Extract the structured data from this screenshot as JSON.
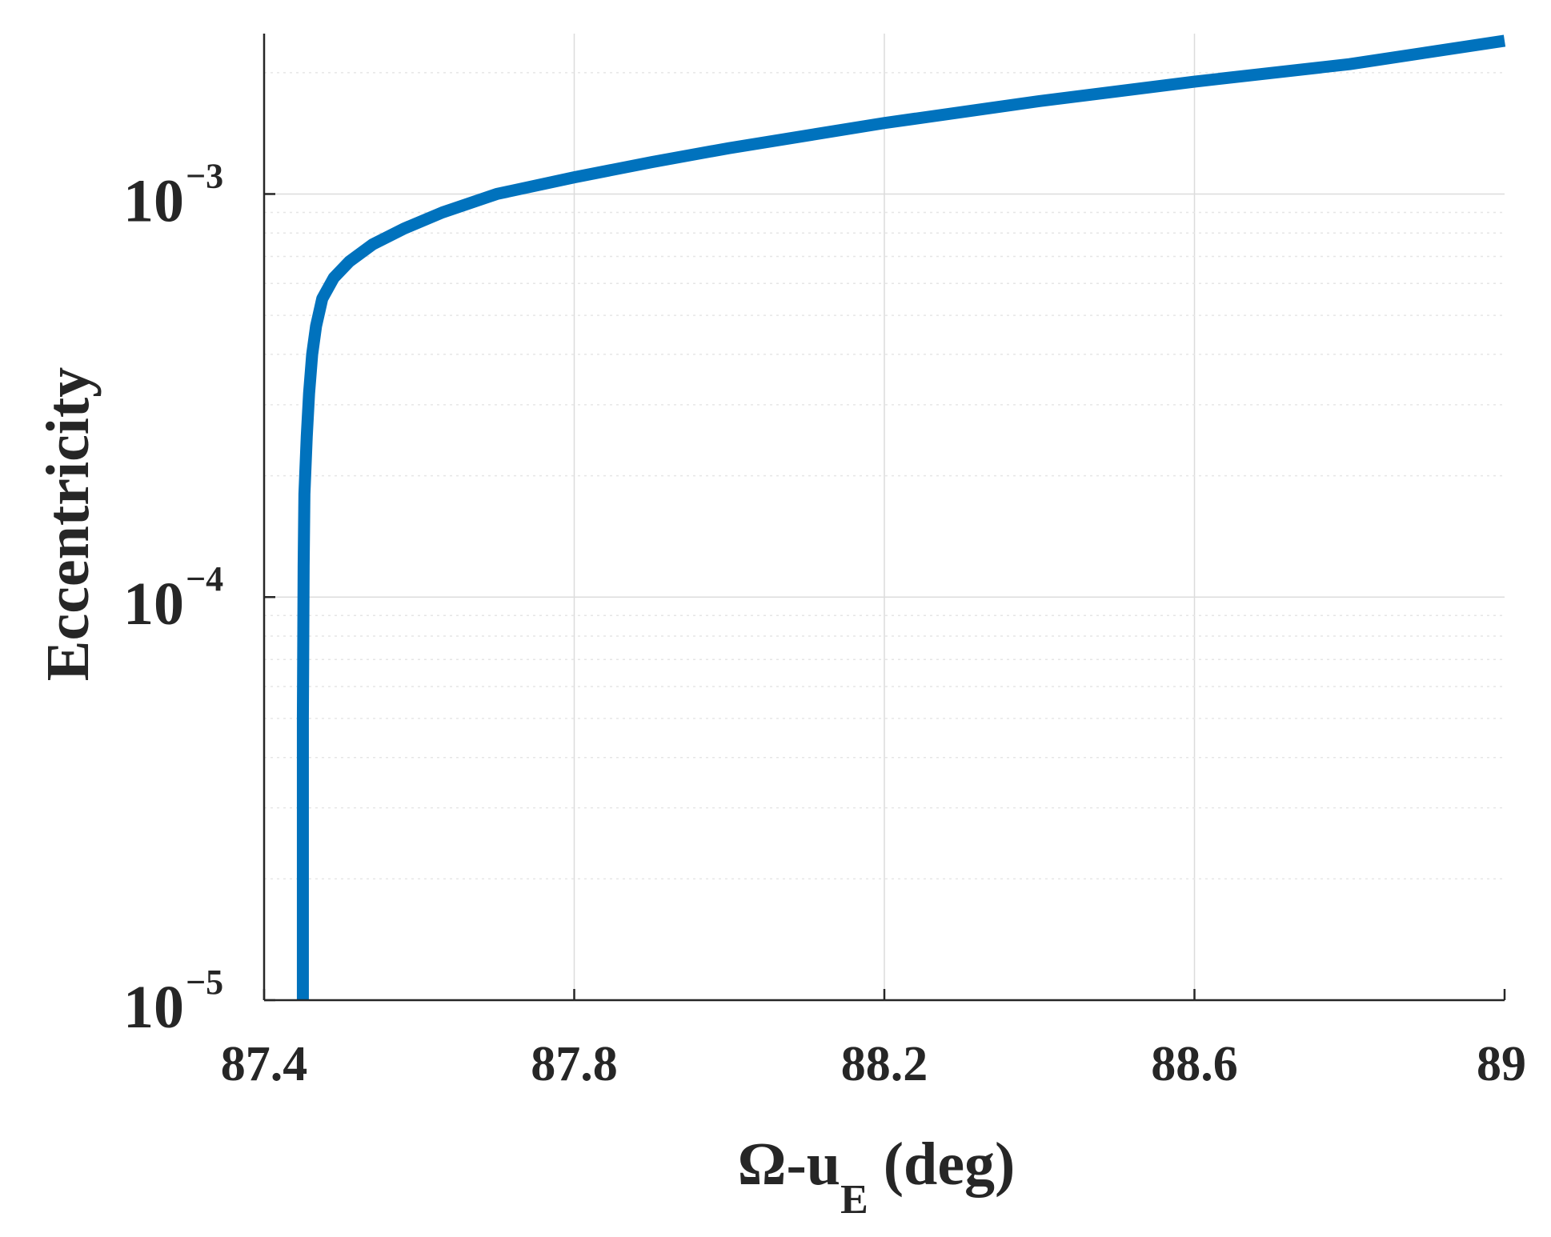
{
  "colors": {
    "line": "#0072BD",
    "axis": "#262626",
    "grid": "#DCDCDC"
  },
  "chart_data": {
    "type": "line",
    "xlabel": "Ω-u_E (deg)",
    "xlabel_parts": {
      "main": "Ω-u",
      "sub": "E",
      "tail": " (deg)"
    },
    "ylabel": "Eccentricity",
    "xlim": [
      87.4,
      89
    ],
    "ylim": [
      1e-05,
      0.0025
    ],
    "y_scale": "log",
    "grid": true,
    "x_ticks": [
      87.4,
      87.8,
      88.2,
      88.6,
      89
    ],
    "x_tick_labels": [
      "87.4",
      "87.8",
      "88.2",
      "88.6",
      "89"
    ],
    "y_ticks": [
      1e-05,
      0.0001,
      0.001
    ],
    "y_tick_labels": [
      {
        "base": "10",
        "exp": "−5"
      },
      {
        "base": "10",
        "exp": "−4"
      },
      {
        "base": "10",
        "exp": "−3"
      }
    ],
    "series": [
      {
        "x": [
          87.45,
          87.45,
          87.451,
          87.452,
          87.455,
          87.458,
          87.462,
          87.467,
          87.475,
          87.49,
          87.51,
          87.54,
          87.58,
          87.63,
          87.7,
          87.8,
          87.9,
          88.0,
          88.2,
          88.4,
          88.6,
          88.8,
          89.0
        ],
        "y": [
          1e-05,
          5e-05,
          0.00012,
          0.00018,
          0.00025,
          0.00032,
          0.0004,
          0.00047,
          0.00055,
          0.00062,
          0.00068,
          0.00075,
          0.00082,
          0.0009,
          0.001,
          0.0011,
          0.0012,
          0.0013,
          0.0015,
          0.0017,
          0.0019,
          0.0021,
          0.0024
        ]
      }
    ]
  }
}
